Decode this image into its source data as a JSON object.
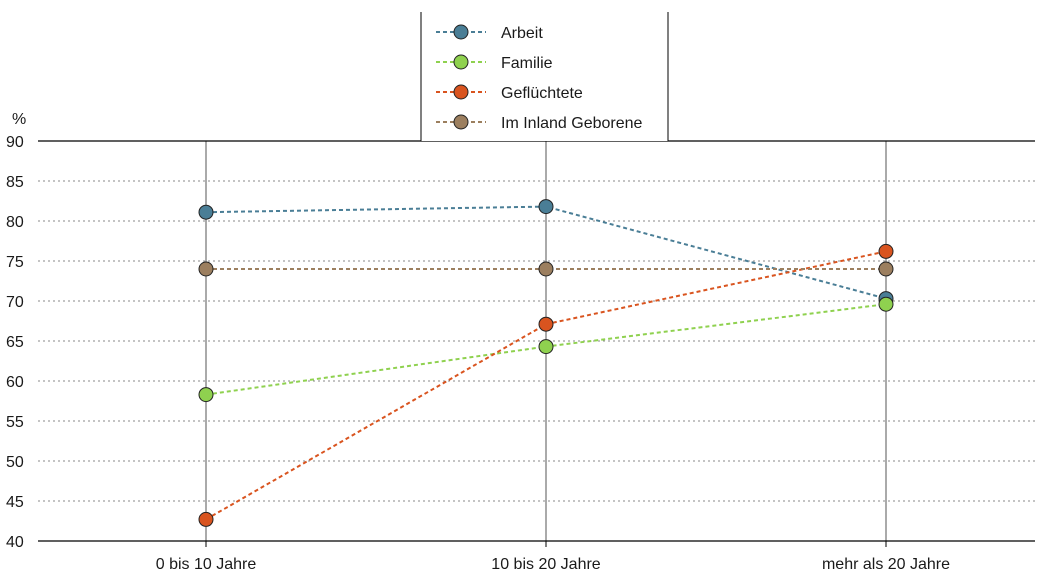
{
  "chart_data": {
    "type": "line",
    "title": "",
    "xlabel": "",
    "ylabel": "%",
    "ylim": [
      40,
      90
    ],
    "yticks": [
      40,
      45,
      50,
      55,
      60,
      65,
      70,
      75,
      80,
      85,
      90
    ],
    "categories": [
      "0 bis 10 Jahre",
      "10 bis 20 Jahre",
      "mehr als 20 Jahre"
    ],
    "grid": "horizontal dotted",
    "legend_position": "top-center",
    "series": [
      {
        "name": "Arbeit",
        "values": [
          81.1,
          81.8,
          70.3
        ],
        "color": "#4a7e96"
      },
      {
        "name": "Familie",
        "values": [
          58.3,
          64.3,
          69.6
        ],
        "color": "#8fd14f"
      },
      {
        "name": "Geflüchtete",
        "values": [
          42.7,
          67.1,
          76.2
        ],
        "color": "#d9541f"
      },
      {
        "name": "Im Inland Geborene",
        "values": [
          74.0,
          74.0,
          74.0
        ],
        "color": "#9c7f5f"
      }
    ]
  }
}
